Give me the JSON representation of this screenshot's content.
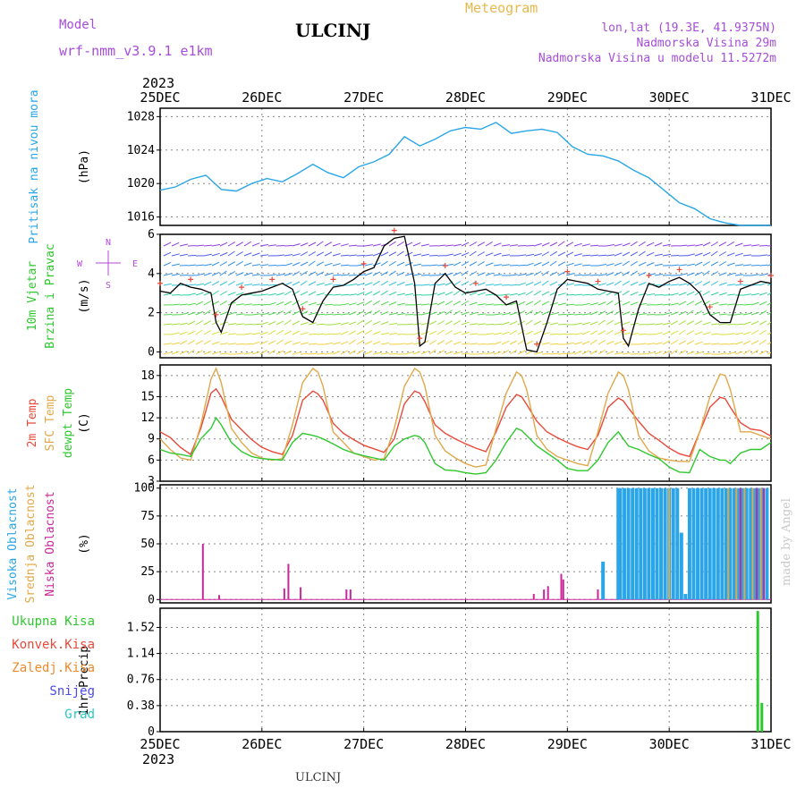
{
  "header": {
    "model_label": "Model",
    "model_name": "wrf-nmm_v3.9.1 e1km",
    "station_title": "ULCINJ",
    "product_title": "Meteogram",
    "lonlat": "lon,lat (19.3E, 41.9375N)",
    "elevation": "Nadmorska Visina 29m",
    "model_elevation": "Nadmorska Visina u modelu 11.5272m"
  },
  "footer": {
    "station": "ULCINJ"
  },
  "watermark": "made by Angel",
  "time_axis": {
    "year": "2023",
    "labels": [
      "25DEC",
      "26DEC",
      "27DEC",
      "28DEC",
      "29DEC",
      "30DEC",
      "31DEC"
    ],
    "range_days": [
      0,
      6
    ]
  },
  "colors": {
    "pressure": "#2aa6e8",
    "temp2m": "#e84a3a",
    "sfc_temp": "#e0a84a",
    "dewpt": "#2ec82e",
    "high_cloud": "#2aa6e8",
    "mid_cloud": "#e0a84a",
    "low_cloud": "#c8289a",
    "total_precip": "#2ec82e",
    "conv_precip": "#e84a3a",
    "strat_precip": "#f08a2a",
    "snow": "#4a4ae8",
    "hail": "#2ac8c8",
    "compass": "#b44ad8",
    "wind_speed_line": "#000000",
    "wind_gust_marker": "#e84a3a"
  },
  "chart_data": [
    {
      "type": "line",
      "id": "pressure",
      "ylabel_left": "Pritisak na nivou mora",
      "units": "(hPa)",
      "ylim": [
        1015,
        1029
      ],
      "yticks": [
        1016,
        1020,
        1024,
        1028
      ],
      "grid": true,
      "series": [
        {
          "color_key": "pressure",
          "x": [
            0,
            0.15,
            0.3,
            0.45,
            0.6,
            0.75,
            0.9,
            1.05,
            1.2,
            1.35,
            1.5,
            1.65,
            1.8,
            1.95,
            2.1,
            2.25,
            2.4,
            2.55,
            2.7,
            2.85,
            3.0,
            3.15,
            3.3,
            3.45,
            3.6,
            3.75,
            3.9,
            4.05,
            4.2,
            4.35,
            4.5,
            4.65,
            4.8,
            4.95,
            5.1,
            5.25,
            5.4,
            5.55,
            5.7,
            5.85,
            6.0
          ],
          "y": [
            1019.2,
            1019.6,
            1020.5,
            1021.0,
            1019.3,
            1019.1,
            1020.0,
            1020.6,
            1020.2,
            1021.2,
            1022.3,
            1021.3,
            1020.7,
            1022.0,
            1022.6,
            1023.5,
            1025.6,
            1024.5,
            1025.3,
            1026.3,
            1026.7,
            1026.5,
            1027.3,
            1026.0,
            1026.3,
            1026.5,
            1026.1,
            1024.4,
            1023.5,
            1023.3,
            1022.7,
            1021.6,
            1020.7,
            1019.2,
            1017.7,
            1017.0,
            1015.8,
            1015.3,
            1015.0,
            1015.0,
            1015.0
          ]
        }
      ]
    },
    {
      "type": "line",
      "id": "wind",
      "ylabel_left": "10m Vjetar",
      "ylabel_left2": "Brzina i Pravac",
      "units": "(m/s)",
      "ylim": [
        -0.3,
        6
      ],
      "yticks": [
        0,
        2,
        4,
        6
      ],
      "grid": true,
      "compass": {
        "n": "N",
        "s": "S",
        "e": "E",
        "w": "W"
      },
      "series": [
        {
          "color_key": "wind_speed_line",
          "x": [
            0,
            0.1,
            0.2,
            0.3,
            0.4,
            0.5,
            0.55,
            0.6,
            0.7,
            0.8,
            0.9,
            1.0,
            1.1,
            1.2,
            1.3,
            1.4,
            1.5,
            1.6,
            1.7,
            1.8,
            1.9,
            2.0,
            2.1,
            2.2,
            2.3,
            2.4,
            2.5,
            2.55,
            2.6,
            2.7,
            2.8,
            2.9,
            3.0,
            3.1,
            3.2,
            3.3,
            3.4,
            3.5,
            3.6,
            3.7,
            3.8,
            3.9,
            4.0,
            4.1,
            4.2,
            4.3,
            4.4,
            4.5,
            4.55,
            4.6,
            4.7,
            4.8,
            4.9,
            5.0,
            5.1,
            5.2,
            5.3,
            5.4,
            5.5,
            5.6,
            5.7,
            5.8,
            5.9,
            6.0
          ],
          "y": [
            3.1,
            3.0,
            3.5,
            3.3,
            3.2,
            3.0,
            1.5,
            1.0,
            2.5,
            2.9,
            3.0,
            3.1,
            3.3,
            3.5,
            3.2,
            1.8,
            1.5,
            2.6,
            3.3,
            3.4,
            3.7,
            4.1,
            4.3,
            5.4,
            5.8,
            5.9,
            3.5,
            0.3,
            0.5,
            3.5,
            4.0,
            3.3,
            3.0,
            3.1,
            3.2,
            2.9,
            2.4,
            2.6,
            0.1,
            0.0,
            1.5,
            3.2,
            3.7,
            3.6,
            3.5,
            3.2,
            3.1,
            3.0,
            0.7,
            0.3,
            2.2,
            3.5,
            3.3,
            3.6,
            3.8,
            3.5,
            3.0,
            1.9,
            1.5,
            1.5,
            3.2,
            3.4,
            3.6,
            3.5
          ]
        }
      ]
    },
    {
      "type": "line",
      "id": "temperature",
      "ylabel_left": "2m Temp",
      "ylabel_left2": "SFC Temp",
      "ylabel_left3": "dewpt Temp",
      "units": "(C)",
      "ylim": [
        3,
        19.5
      ],
      "yticks": [
        3,
        6,
        9,
        12,
        15,
        18
      ],
      "grid": true,
      "series": [
        {
          "name": "2m Temp",
          "color_key": "temp2m",
          "x": [
            0,
            0.1,
            0.2,
            0.3,
            0.4,
            0.5,
            0.55,
            0.6,
            0.7,
            0.8,
            0.9,
            1.0,
            1.1,
            1.2,
            1.3,
            1.4,
            1.5,
            1.55,
            1.6,
            1.7,
            1.8,
            1.9,
            2.0,
            2.1,
            2.2,
            2.3,
            2.4,
            2.5,
            2.55,
            2.6,
            2.7,
            2.8,
            2.9,
            3.0,
            3.1,
            3.2,
            3.3,
            3.4,
            3.5,
            3.55,
            3.6,
            3.7,
            3.8,
            3.9,
            4.0,
            4.1,
            4.2,
            4.3,
            4.4,
            4.5,
            4.55,
            4.6,
            4.7,
            4.8,
            4.9,
            5.0,
            5.1,
            5.2,
            5.3,
            5.4,
            5.5,
            5.55,
            5.6,
            5.7,
            5.8,
            5.9,
            6.0
          ],
          "y": [
            10.0,
            9.2,
            7.8,
            6.8,
            10.5,
            15.5,
            16.1,
            15.0,
            11.8,
            10.3,
            8.9,
            7.8,
            7.2,
            6.8,
            9.5,
            14.5,
            15.8,
            15.4,
            14.5,
            11.2,
            9.8,
            8.9,
            8.1,
            7.6,
            7.1,
            9.0,
            14.0,
            15.8,
            15.5,
            14.3,
            11.0,
            9.8,
            9.0,
            8.3,
            7.7,
            7.2,
            10.0,
            13.5,
            15.3,
            15.0,
            13.9,
            11.5,
            10.0,
            9.2,
            8.5,
            7.9,
            7.5,
            9.5,
            13.5,
            14.8,
            14.4,
            13.4,
            11.5,
            9.8,
            8.8,
            7.7,
            6.9,
            6.5,
            10.0,
            13.5,
            14.9,
            14.7,
            13.5,
            11.3,
            10.4,
            10.2,
            9.4
          ]
        },
        {
          "name": "SFC Temp",
          "color_key": "sfc_temp",
          "x": [
            0,
            0.1,
            0.2,
            0.3,
            0.4,
            0.5,
            0.55,
            0.6,
            0.7,
            0.8,
            0.9,
            1.0,
            1.1,
            1.2,
            1.3,
            1.4,
            1.5,
            1.55,
            1.6,
            1.7,
            1.8,
            1.9,
            2.0,
            2.1,
            2.2,
            2.3,
            2.4,
            2.5,
            2.55,
            2.6,
            2.7,
            2.8,
            2.9,
            3.0,
            3.1,
            3.2,
            3.3,
            3.4,
            3.5,
            3.55,
            3.6,
            3.7,
            3.8,
            3.9,
            4.0,
            4.1,
            4.2,
            4.3,
            4.4,
            4.5,
            4.55,
            4.6,
            4.7,
            4.8,
            4.9,
            5.0,
            5.1,
            5.2,
            5.3,
            5.4,
            5.5,
            5.55,
            5.6,
            5.7,
            5.8,
            5.9,
            6.0
          ],
          "y": [
            9.0,
            7.5,
            6.3,
            6.0,
            11.0,
            17.5,
            19.0,
            17.0,
            10.5,
            8.5,
            7.0,
            6.3,
            6.0,
            6.2,
            11.0,
            17.0,
            19.0,
            18.5,
            16.5,
            10.0,
            8.5,
            7.0,
            6.5,
            6.0,
            6.2,
            10.5,
            16.5,
            19.0,
            18.5,
            16.5,
            9.5,
            7.3,
            6.3,
            5.5,
            5.0,
            5.3,
            10.5,
            15.5,
            18.5,
            18.0,
            16.0,
            9.5,
            7.5,
            6.5,
            6.0,
            5.5,
            5.2,
            10.0,
            15.5,
            18.5,
            18.0,
            16.0,
            9.5,
            7.3,
            6.3,
            6.0,
            5.8,
            5.8,
            10.0,
            15.0,
            18.2,
            18.0,
            16.0,
            10.0,
            10.0,
            9.5,
            9.0
          ]
        },
        {
          "name": "dewpt Temp",
          "color_key": "dewpt",
          "x": [
            0,
            0.1,
            0.2,
            0.3,
            0.4,
            0.5,
            0.55,
            0.6,
            0.7,
            0.8,
            0.9,
            1.0,
            1.1,
            1.2,
            1.3,
            1.4,
            1.5,
            1.55,
            1.6,
            1.7,
            1.8,
            1.9,
            2.0,
            2.1,
            2.2,
            2.3,
            2.4,
            2.5,
            2.55,
            2.6,
            2.7,
            2.8,
            2.9,
            3.0,
            3.1,
            3.2,
            3.3,
            3.4,
            3.5,
            3.55,
            3.6,
            3.7,
            3.8,
            3.9,
            4.0,
            4.1,
            4.2,
            4.3,
            4.4,
            4.5,
            4.55,
            4.6,
            4.7,
            4.8,
            4.9,
            5.0,
            5.1,
            5.2,
            5.3,
            5.4,
            5.5,
            5.55,
            5.6,
            5.7,
            5.8,
            5.9,
            6.0
          ],
          "y": [
            7.5,
            7.0,
            6.8,
            6.5,
            9.0,
            10.5,
            12.0,
            11.0,
            8.5,
            7.2,
            6.5,
            6.2,
            6.1,
            6.0,
            8.5,
            9.8,
            9.5,
            9.3,
            9.0,
            8.3,
            7.5,
            7.0,
            6.6,
            6.3,
            6.0,
            8.0,
            9.0,
            9.5,
            9.3,
            8.5,
            5.5,
            4.6,
            4.5,
            4.2,
            4.0,
            4.2,
            6.0,
            8.5,
            10.5,
            10.2,
            9.5,
            8.0,
            7.0,
            6.0,
            4.8,
            4.5,
            4.5,
            6.0,
            8.5,
            10.0,
            9.0,
            8.0,
            7.5,
            6.8,
            6.2,
            5.0,
            4.3,
            4.2,
            7.5,
            6.5,
            6.0,
            6.0,
            5.5,
            7.0,
            7.5,
            7.5,
            8.5
          ]
        }
      ]
    },
    {
      "type": "bar",
      "id": "cloud",
      "ylabel_left": "Visoka Oblacnost",
      "ylabel_left2": "Srednja Oblacnost",
      "ylabel_left3": "Niska Oblacnost",
      "units": "(%)",
      "ylim": [
        -3,
        103
      ],
      "yticks": [
        0,
        25,
        50,
        75,
        100
      ],
      "grid": true,
      "high": {
        "x": [
          4.35,
          4.5,
          4.52,
          4.56,
          4.6,
          4.64,
          4.68,
          4.72,
          4.76,
          4.8,
          4.84,
          4.88,
          4.92,
          4.96,
          5.0,
          5.04,
          5.08,
          5.12,
          5.16,
          5.2,
          5.24,
          5.28,
          5.32,
          5.36,
          5.4,
          5.44,
          5.48,
          5.52,
          5.56,
          5.6,
          5.64,
          5.68,
          5.72,
          5.76,
          5.8,
          5.84,
          5.88,
          5.92,
          5.96
        ],
        "y": [
          34,
          100,
          100,
          100,
          100,
          100,
          100,
          100,
          100,
          100,
          100,
          100,
          100,
          100,
          100,
          100,
          100,
          60,
          5,
          100,
          100,
          100,
          100,
          100,
          100,
          100,
          100,
          100,
          100,
          100,
          100,
          100,
          100,
          100,
          100,
          100,
          100,
          100,
          100
        ]
      },
      "mid": {
        "x": [
          5.0,
          5.58,
          5.66,
          5.74,
          5.82,
          5.9
        ],
        "y": [
          100,
          100,
          100,
          100,
          100,
          100
        ]
      },
      "low": {
        "x": [
          0.42,
          0.58,
          1.22,
          1.26,
          1.38,
          1.83,
          1.87,
          3.67,
          3.77,
          3.81,
          3.94,
          3.96,
          4.3,
          5.7,
          5.86,
          5.93
        ],
        "y": [
          50,
          4,
          10,
          32,
          11,
          9,
          9,
          5,
          9,
          12,
          23,
          18,
          9,
          100,
          100,
          100
        ]
      }
    },
    {
      "type": "bar",
      "id": "precip",
      "ylabel_left": "1hr Precip (mm)",
      "ylim": [
        0,
        1.8
      ],
      "yticks": [
        0,
        0.38,
        0.76,
        1.14,
        1.52
      ],
      "grid": true,
      "legend": [
        "Ukupna Kisa",
        "Konvek.Kisa",
        "Zaledj.Kisa",
        "Snijeg",
        "Grad"
      ],
      "total": {
        "x": [
          5.87,
          5.91
        ],
        "y": [
          1.76,
          0.42
        ]
      }
    }
  ]
}
